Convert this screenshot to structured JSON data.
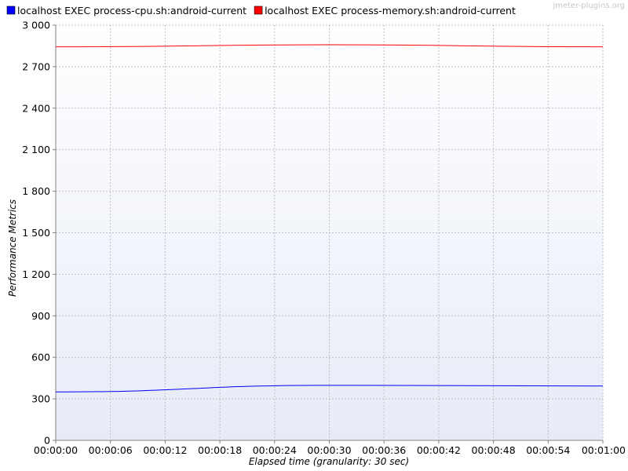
{
  "watermark": "jmeter-plugins.org",
  "colors": {
    "cpu": "#0000ff",
    "memory": "#ff0000",
    "grid": "#c0c0c0",
    "bg_top": "#ffffff",
    "bg_bottom": "#e6ebf7"
  },
  "chart_data": {
    "type": "line",
    "xlabel": "Elapsed time (granularity: 30 sec)",
    "ylabel": "Performance Metrics",
    "ylim": [
      0,
      3000
    ],
    "yticks": [
      0,
      300,
      600,
      900,
      1200,
      1500,
      1800,
      2100,
      2400,
      2700,
      3000
    ],
    "ytick_labels": [
      "0",
      "300",
      "600",
      "900",
      "1 200",
      "1 500",
      "1 800",
      "2 100",
      "2 400",
      "2 700",
      "3 000"
    ],
    "xlim": [
      0,
      60
    ],
    "xticks": [
      0,
      6,
      12,
      18,
      24,
      30,
      36,
      42,
      48,
      54,
      60
    ],
    "xtick_labels": [
      "00:00:00",
      "00:00:06",
      "00:00:12",
      "00:00:18",
      "00:00:24",
      "00:00:30",
      "00:00:36",
      "00:00:42",
      "00:00:48",
      "00:00:54",
      "00:01:00"
    ],
    "grid": true,
    "legend_position": "top",
    "series": [
      {
        "name": "localhost EXEC process-cpu.sh:android-current",
        "color": "#0000ff",
        "x": [
          0,
          30,
          60
        ],
        "y": [
          350,
          398,
          393
        ]
      },
      {
        "name": "localhost EXEC process-memory.sh:android-current",
        "color": "#ff0000",
        "x": [
          0,
          30,
          60
        ],
        "y": [
          2843,
          2858,
          2843
        ]
      }
    ]
  }
}
